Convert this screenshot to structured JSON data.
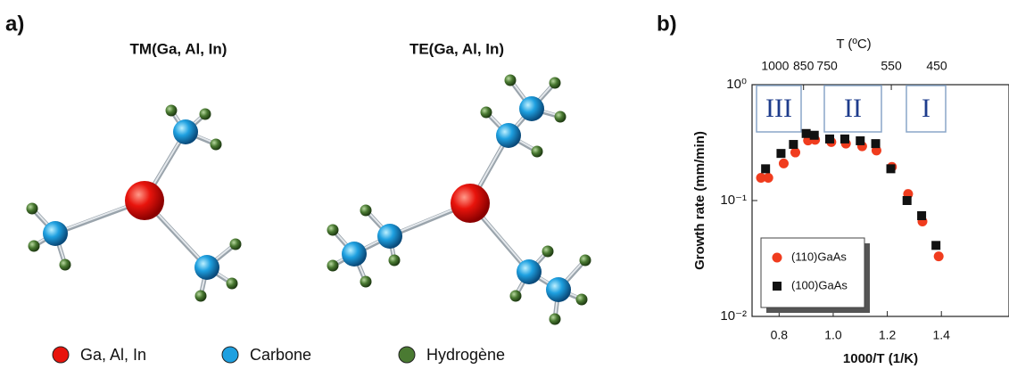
{
  "panel_labels": [
    "a)",
    "b)"
  ],
  "molecules": [
    {
      "title": "TM(Ga, Al, In)"
    },
    {
      "title": "TE(Ga, Al, In)"
    }
  ],
  "atom_legend": [
    {
      "label": "Ga, Al, In",
      "color": "#e8140c"
    },
    {
      "label": "Carbone",
      "color": "#1ea0e0"
    },
    {
      "label": "Hydrogène",
      "color": "#4a7a32"
    }
  ],
  "chart_data": {
    "type": "scatter",
    "xlabel": "1000/T (1/K)",
    "ylabel": "Growth rate (mm/min)",
    "x2label": "T (ºC)",
    "xlim": [
      0.7,
      1.65
    ],
    "xticks": [
      0.8,
      {
        "value": 1,
        "label": "1.0"
      },
      1.2,
      1.4
    ],
    "x2ticks": [
      1000,
      850,
      750,
      550,
      450
    ],
    "ylim": [
      0.01,
      1
    ],
    "yscale": "log",
    "yticks": [
      {
        "value": 1,
        "label": "10⁰"
      },
      {
        "value": 0.1,
        "label": "10⁻¹"
      },
      {
        "value": 0.01,
        "label": "10⁻²"
      }
    ],
    "annotations": [
      "III",
      "II",
      "I"
    ],
    "legend": "lower left",
    "series": [
      {
        "name": "(110)GaAs",
        "color": "#f03c1e",
        "marker": "circle",
        "x": [
          0.733,
          0.76,
          0.817,
          0.86,
          0.907,
          0.933,
          0.993,
          1.047,
          1.107,
          1.16,
          1.217,
          1.277,
          1.33,
          1.39
        ],
        "values": [
          0.157,
          0.157,
          0.209,
          0.26,
          0.33,
          0.334,
          0.32,
          0.31,
          0.294,
          0.27,
          0.195,
          0.114,
          0.066,
          0.033
        ]
      },
      {
        "name": "(100)GaAs",
        "color": "#111111",
        "marker": "square",
        "x": [
          0.75,
          0.807,
          0.853,
          0.9,
          0.93,
          0.987,
          1.043,
          1.1,
          1.157,
          1.213,
          1.273,
          1.327,
          1.38
        ],
        "values": [
          0.188,
          0.255,
          0.305,
          0.379,
          0.366,
          0.34,
          0.34,
          0.328,
          0.31,
          0.188,
          0.1,
          0.074,
          0.041
        ]
      }
    ]
  }
}
